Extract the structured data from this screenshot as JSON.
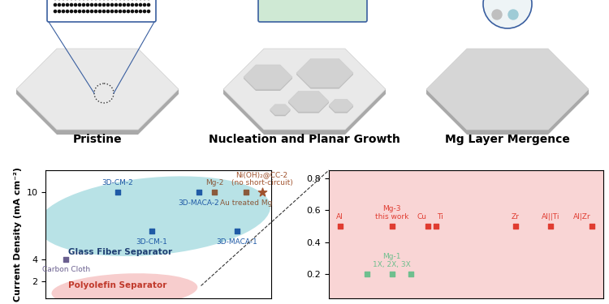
{
  "diagram": {
    "panels": [
      "Pristine",
      "Nucleation and Planar Growth",
      "Mg Layer Mergence"
    ]
  },
  "chart_data": [
    {
      "type": "scatter",
      "y_label": "Current Density (mA cm⁻²)",
      "xlim": [
        0,
        10
      ],
      "ylim": [
        0.5,
        12
      ],
      "yticks": [
        2,
        4,
        10
      ],
      "tick_labels": "y",
      "annotations": [
        "Glass Fiber Separator",
        "Polyolefin Separator"
      ],
      "series": [
        {
          "name": "Carbon Cloth",
          "color": "#6a5f8f",
          "marker": "square",
          "x": [
            0.9
          ],
          "values": [
            4
          ]
        },
        {
          "name": "3D-CM-2",
          "color": "#1f5aa6",
          "marker": "square",
          "x": [
            3.2
          ],
          "values": [
            10
          ]
        },
        {
          "name": "3D-CM-1",
          "color": "#1f5aa6",
          "marker": "square",
          "x": [
            4.7
          ],
          "values": [
            6.5
          ]
        },
        {
          "name": "3D-MACA-2",
          "color": "#1f5aa6",
          "marker": "square",
          "x": [
            6.8
          ],
          "values": [
            10
          ]
        },
        {
          "name": "Mg-2",
          "color": "#8b5a3c",
          "marker": "square",
          "x": [
            7.5
          ],
          "values": [
            10
          ]
        },
        {
          "name": "Au treated Mg",
          "color": "#8b5a3c",
          "marker": "square",
          "x": [
            8.9
          ],
          "values": [
            10
          ]
        },
        {
          "name": "3D-MACA-1",
          "color": "#1f5aa6",
          "marker": "square",
          "x": [
            8.5
          ],
          "values": [
            6.5
          ]
        },
        {
          "name": "Ni(OH)₂@CC-2\n(no short-circuit)",
          "color": "#a0522d",
          "marker": "star",
          "x": [
            9.6
          ],
          "values": [
            10
          ]
        }
      ]
    },
    {
      "type": "scatter",
      "xlim": [
        0,
        10
      ],
      "ylim": [
        0.05,
        0.85
      ],
      "yticks": [
        0.2,
        0.4,
        0.6,
        0.8
      ],
      "tick_labels": "y",
      "series": [
        {
          "name": "Al",
          "color": "#e03c31",
          "marker": "square",
          "x": [
            0.4
          ],
          "values": [
            0.5
          ]
        },
        {
          "name": "Mg-3\nthis work",
          "color": "#e03c31",
          "marker": "square",
          "x": [
            2.3
          ],
          "values": [
            0.5
          ]
        },
        {
          "name": "Cu",
          "color": "#e03c31",
          "marker": "square",
          "x": [
            3.6
          ],
          "values": [
            0.5
          ]
        },
        {
          "name": "Ti",
          "color": "#e03c31",
          "marker": "square",
          "x": [
            3.9
          ],
          "values": [
            0.5
          ]
        },
        {
          "name": "Zr",
          "color": "#e03c31",
          "marker": "square",
          "x": [
            6.8
          ],
          "values": [
            0.5
          ]
        },
        {
          "name": "Al||Ti",
          "color": "#e03c31",
          "marker": "square",
          "x": [
            8.1
          ],
          "values": [
            0.5
          ]
        },
        {
          "name": "Al|Zr",
          "color": "#e03c31",
          "marker": "square",
          "x": [
            9.6
          ],
          "values": [
            0.5
          ]
        },
        {
          "name": "Mg-1\n1X, 2X, 3X",
          "color": "#6fbf8e",
          "marker": "square",
          "x": [
            1.4,
            2.3,
            3.0
          ],
          "values": [
            0.2,
            0.2,
            0.2
          ]
        }
      ]
    }
  ]
}
